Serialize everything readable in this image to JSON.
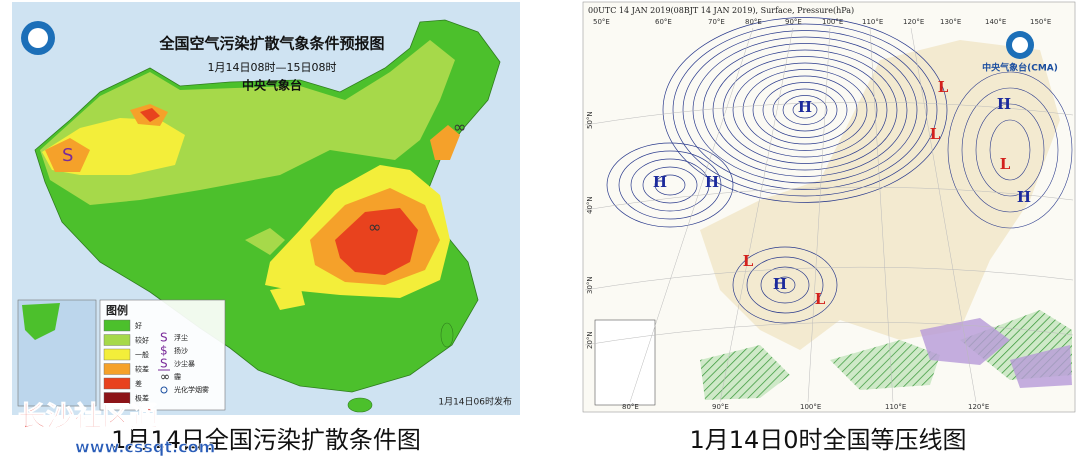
{
  "left_map": {
    "title": "全国空气污染扩散气象条件预报图",
    "subtitle": "1月14日08时—15日08时",
    "issuer": "中央气象台",
    "legend": {
      "title": "图例",
      "levels": [
        {
          "label": "好",
          "color": "#4cc02c"
        },
        {
          "label": "较好",
          "color": "#a6d94a"
        },
        {
          "label": "一般",
          "color": "#f3ee3a"
        },
        {
          "label": "较差",
          "color": "#f5a12a"
        },
        {
          "label": "差",
          "color": "#e8421e"
        },
        {
          "label": "极差",
          "color": "#8c1418"
        }
      ],
      "symbols": [
        {
          "glyph": "S",
          "label": "浮尘"
        },
        {
          "glyph": "$",
          "label": "扬沙"
        },
        {
          "glyph": "S",
          "label": "沙尘暴"
        },
        {
          "glyph": "∞",
          "label": "霾"
        },
        {
          "glyph": "",
          "label": "光化学烟雾"
        }
      ]
    },
    "issued": "1月14日06时发布",
    "caption": "1月14日全国污染扩散条件图"
  },
  "right_map": {
    "header": "00UTC 14 JAN 2019(08BJT 14 JAN 2019), Surface, Pressure(hPa)",
    "logo": "中央气象台(CMA)",
    "lon_top": [
      "50°E",
      "60°E",
      "70°E",
      "80°E",
      "90°E",
      "100°E",
      "110°E",
      "120°E",
      "130°E",
      "140°E",
      "150°E"
    ],
    "lon_bottom": [
      "80°E",
      "90°E",
      "100°E",
      "110°E",
      "120°E"
    ],
    "lat": [
      "50°N",
      "40°N",
      "30°N",
      "20°N"
    ],
    "systems": [
      {
        "label": "H",
        "color": "#1c2a9c"
      },
      {
        "label": "H",
        "color": "#1c2a9c"
      },
      {
        "label": "H",
        "color": "#1c2a9c"
      },
      {
        "label": "L",
        "color": "#d3211c"
      },
      {
        "label": "H",
        "color": "#1c2a9c"
      },
      {
        "label": "L",
        "color": "#d3211c"
      },
      {
        "label": "L",
        "color": "#d3211c"
      },
      {
        "label": "H",
        "color": "#1c2a9c"
      },
      {
        "label": "L",
        "color": "#d3211c"
      },
      {
        "label": "H",
        "color": "#1c2a9c"
      },
      {
        "label": "L",
        "color": "#d3211c"
      }
    ],
    "caption": "1月14日0时全国等压线图"
  },
  "watermark": {
    "name": "长沙社区通",
    "url": "www.cssqt.com"
  }
}
